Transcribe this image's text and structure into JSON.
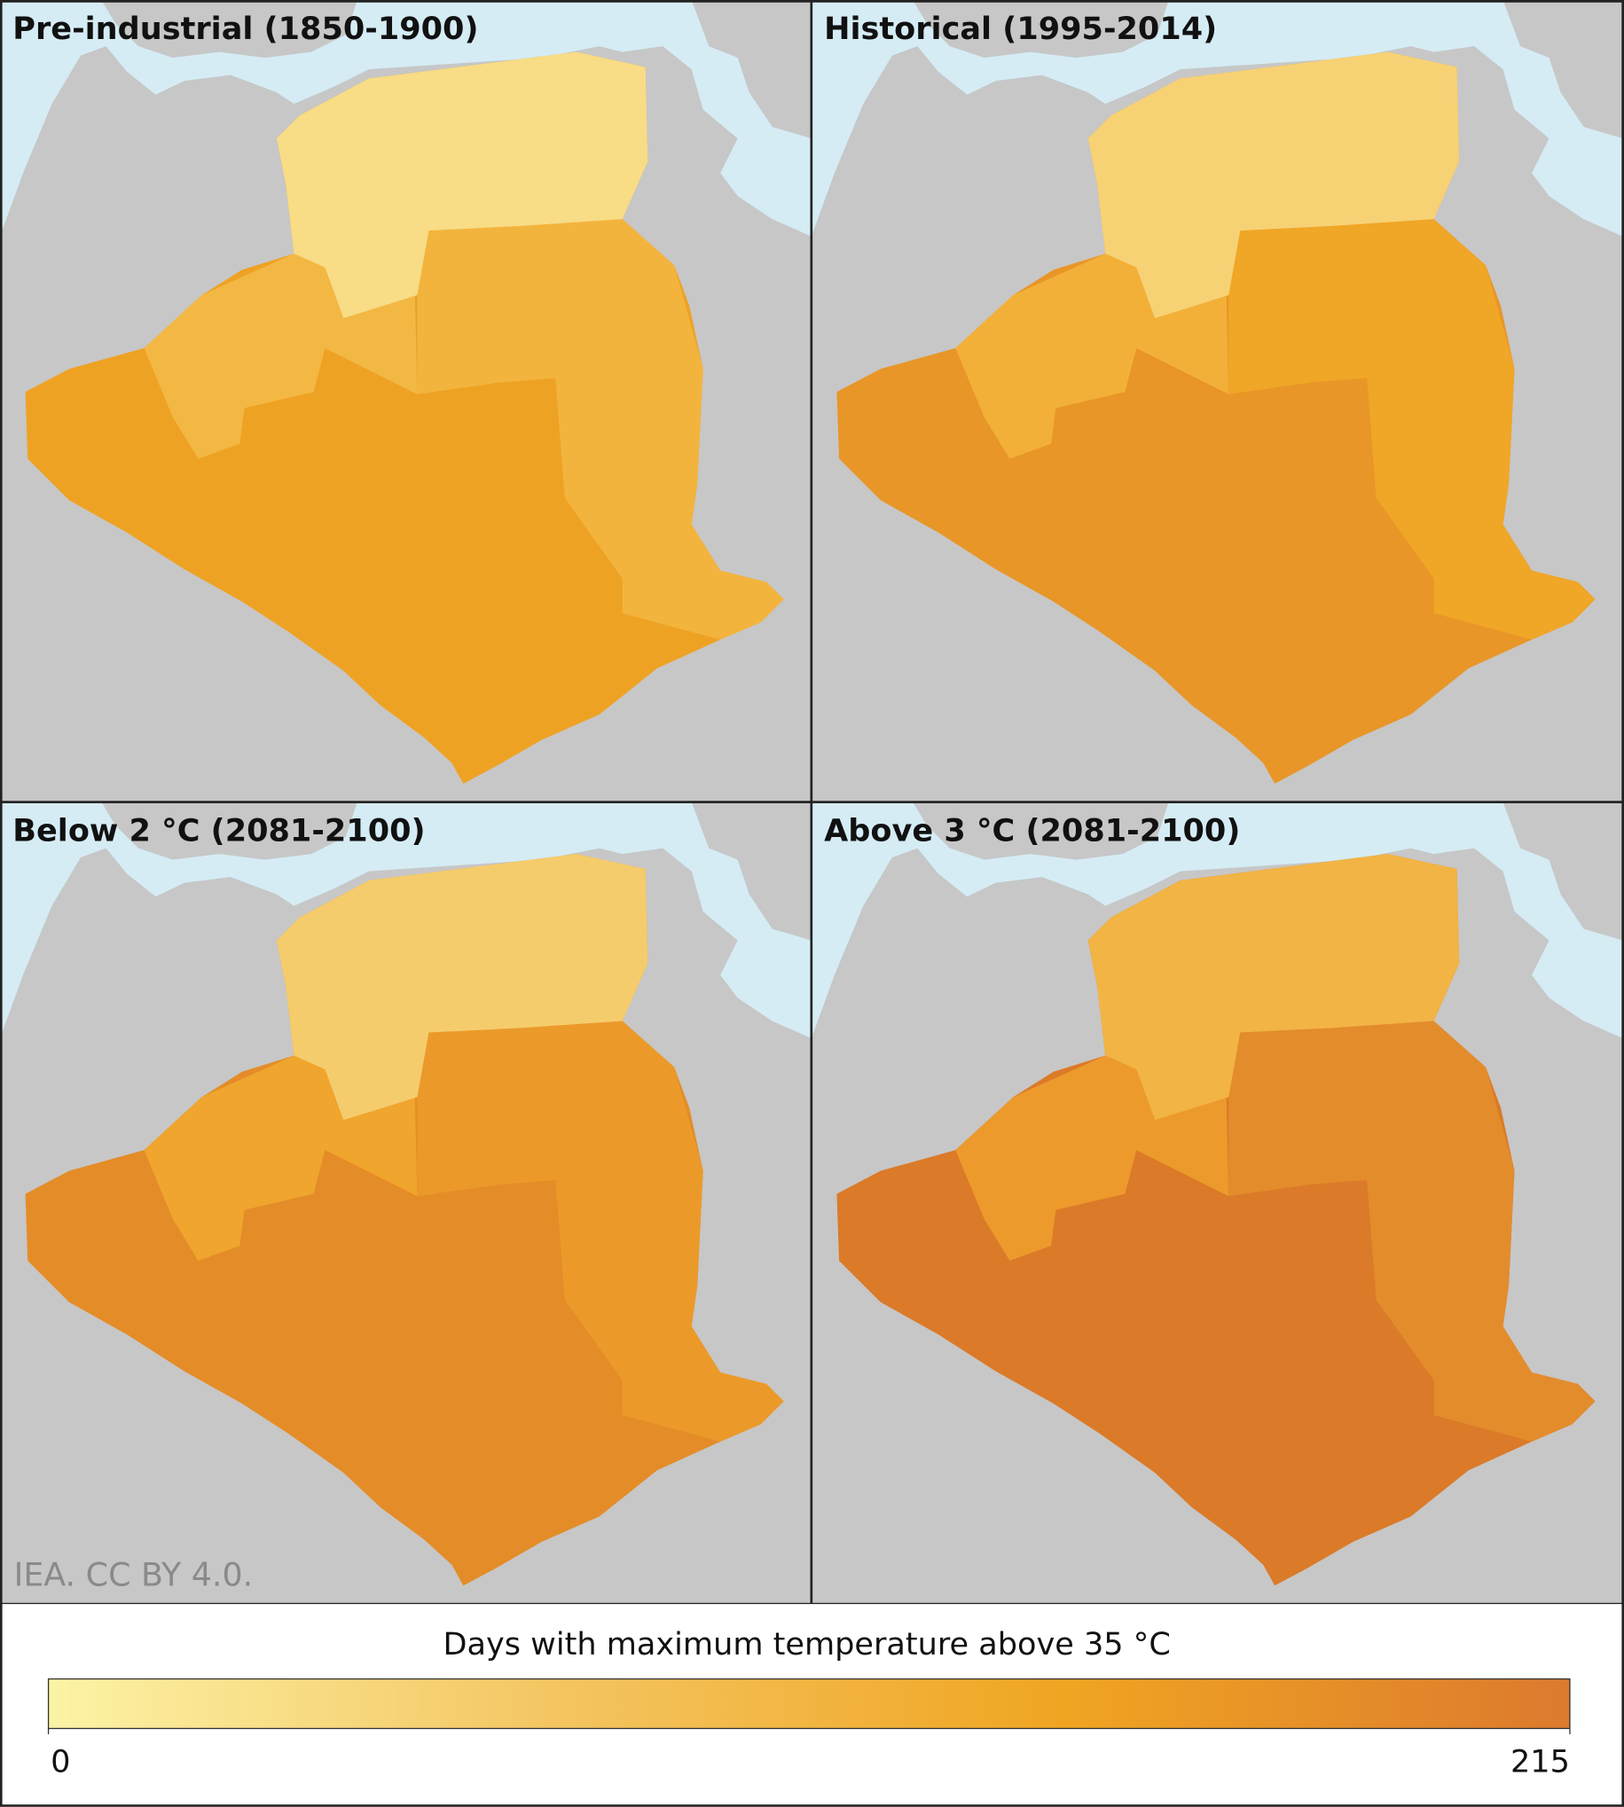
{
  "chart_data": {
    "type": "choropleth",
    "panels": [
      {
        "title": "Pre-industrial (1850-1900)"
      },
      {
        "title": "Historical (1995-2014)"
      },
      {
        "title": "Below 2 °C (2081-2100)"
      },
      {
        "title": "Above 3 °C (2081-2100)"
      }
    ],
    "credit": "IEA. CC BY 4.0.",
    "legend_title": "Days with maximum temperature above 35 °C",
    "clim": [
      0,
      215
    ],
    "cticks": [
      0,
      215
    ],
    "colormap": [
      "#fcf3a6",
      "#f4c561",
      "#f0a522",
      "#dc7a2e"
    ]
  }
}
